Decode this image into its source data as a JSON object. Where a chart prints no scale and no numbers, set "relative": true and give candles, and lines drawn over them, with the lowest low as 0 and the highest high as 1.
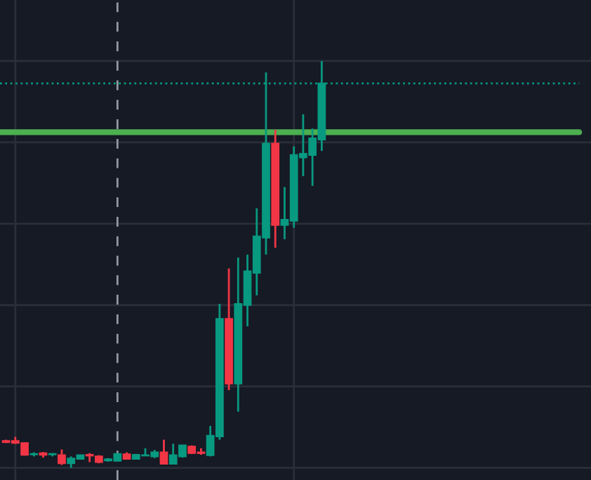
{
  "chart_data": {
    "type": "candlestick",
    "relative": true,
    "grid": true,
    "categories": [
      null,
      null,
      null,
      null,
      null,
      null,
      null,
      null,
      null,
      null,
      null,
      null,
      null,
      null,
      null,
      null,
      null,
      null,
      null,
      null,
      null,
      null,
      null,
      null,
      null,
      null,
      null,
      null,
      null,
      null,
      null,
      null,
      null,
      null,
      null
    ],
    "ohlc": [
      [
        0.066,
        0.069,
        0.061,
        0.063
      ],
      [
        0.066,
        0.076,
        0.059,
        0.061
      ],
      [
        0.061,
        0.062,
        0.03,
        0.032
      ],
      [
        0.033,
        0.038,
        0.028,
        0.034
      ],
      [
        0.036,
        0.039,
        0.025,
        0.032
      ],
      [
        0.033,
        0.036,
        0.028,
        0.034
      ],
      [
        0.031,
        0.045,
        0.007,
        0.011
      ],
      [
        0.011,
        0.028,
        0.0,
        0.023
      ],
      [
        0.022,
        0.032,
        0.021,
        0.031
      ],
      [
        0.032,
        0.036,
        0.014,
        0.03
      ],
      [
        0.028,
        0.031,
        0.011,
        0.014
      ],
      [
        0.018,
        0.024,
        0.015,
        0.021
      ],
      [
        0.017,
        0.036,
        0.017,
        0.034
      ],
      [
        0.033,
        0.038,
        0.021,
        0.022
      ],
      [
        0.022,
        0.034,
        0.021,
        0.032
      ],
      [
        0.03,
        0.048,
        0.029,
        0.031
      ],
      [
        0.028,
        0.044,
        0.024,
        0.038
      ],
      [
        0.038,
        0.069,
        0.01,
        0.01
      ],
      [
        0.01,
        0.059,
        0.008,
        0.031
      ],
      [
        0.028,
        0.056,
        0.025,
        0.055
      ],
      [
        0.052,
        0.055,
        0.034,
        0.036
      ],
      [
        0.038,
        0.048,
        0.032,
        0.036
      ],
      [
        0.031,
        0.103,
        0.028,
        0.079
      ],
      [
        0.077,
        0.403,
        0.069,
        0.366
      ],
      [
        0.366,
        0.49,
        0.191,
        0.207
      ],
      [
        0.207,
        0.517,
        0.138,
        0.403
      ],
      [
        0.4,
        0.524,
        0.348,
        0.483
      ],
      [
        0.479,
        0.638,
        0.424,
        0.569
      ],
      [
        0.566,
        0.972,
        0.524,
        0.797
      ],
      [
        0.797,
        0.831,
        0.541,
        0.597
      ],
      [
        0.597,
        0.69,
        0.562,
        0.61
      ],
      [
        0.607,
        0.79,
        0.59,
        0.769
      ],
      [
        0.763,
        0.869,
        0.717,
        0.772
      ],
      [
        0.769,
        0.834,
        0.693,
        0.81
      ],
      [
        0.807,
        1.0,
        0.779,
        0.945
      ]
    ],
    "colors": [
      "#f23645",
      "#f23645",
      "#f23645",
      "#089981",
      "#f23645",
      "#089981",
      "#f23645",
      "#089981",
      "#089981",
      "#f23645",
      "#f23645",
      "#089981",
      "#089981",
      "#f23645",
      "#089981",
      "#089981",
      "#089981",
      "#f23645",
      "#089981",
      "#089981",
      "#f23645",
      "#f23645",
      "#089981",
      "#089981",
      "#f23645",
      "#089981",
      "#089981",
      "#089981",
      "#089981",
      "#f23645",
      "#089981",
      "#089981",
      "#089981",
      "#089981",
      "#089981"
    ],
    "ref_lines": [
      {
        "axis": "y",
        "value": 0.825,
        "color": "#4caf50",
        "line_style": "solid"
      },
      {
        "axis": "y",
        "value": 0.945,
        "color": "#089981",
        "line_style": "dotted"
      }
    ]
  }
}
